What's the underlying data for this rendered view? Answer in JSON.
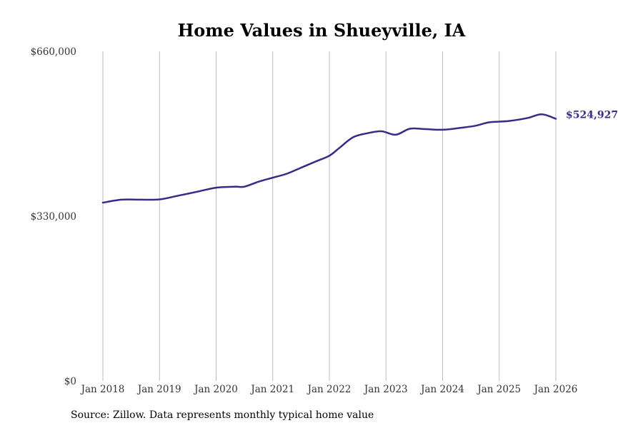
{
  "chart_data": {
    "type": "line",
    "title": "Home Values in Shueyville, IA",
    "xlabel": "",
    "ylabel": "",
    "x_ticks": [
      "Jan 2018",
      "Jan 2019",
      "Jan 2020",
      "Jan 2021",
      "Jan 2022",
      "Jan 2023",
      "Jan 2024",
      "Jan 2025",
      "Jan 2026"
    ],
    "y_ticks": [
      {
        "value": 0,
        "label": "$0"
      },
      {
        "value": 330000,
        "label": "$330,000"
      },
      {
        "value": 660000,
        "label": "$660,000"
      }
    ],
    "ylim": [
      0,
      660000
    ],
    "x_range": [
      2018.0,
      2026.0
    ],
    "grid": "vertical",
    "series": [
      {
        "name": "Typical home value",
        "color": "#352c86",
        "end_label": "$524,927",
        "points": [
          [
            2018.0,
            357000
          ],
          [
            2018.33,
            363000
          ],
          [
            2018.67,
            363000
          ],
          [
            2019.0,
            363500
          ],
          [
            2019.33,
            371000
          ],
          [
            2019.67,
            379000
          ],
          [
            2020.0,
            387000
          ],
          [
            2020.33,
            389000
          ],
          [
            2020.5,
            389000
          ],
          [
            2020.75,
            399000
          ],
          [
            2021.0,
            407000
          ],
          [
            2021.25,
            415000
          ],
          [
            2021.5,
            427000
          ],
          [
            2021.75,
            439000
          ],
          [
            2022.0,
            451000
          ],
          [
            2022.17,
            466000
          ],
          [
            2022.42,
            488000
          ],
          [
            2022.67,
            496000
          ],
          [
            2022.92,
            500000
          ],
          [
            2023.17,
            493000
          ],
          [
            2023.42,
            505000
          ],
          [
            2023.67,
            504500
          ],
          [
            2024.0,
            503000
          ],
          [
            2024.33,
            507000
          ],
          [
            2024.58,
            511000
          ],
          [
            2024.83,
            518000
          ],
          [
            2025.17,
            520500
          ],
          [
            2025.5,
            526500
          ],
          [
            2025.75,
            534000
          ],
          [
            2026.0,
            524927
          ]
        ]
      }
    ],
    "source": "Source: Zillow. Data represents monthly typical home value"
  }
}
